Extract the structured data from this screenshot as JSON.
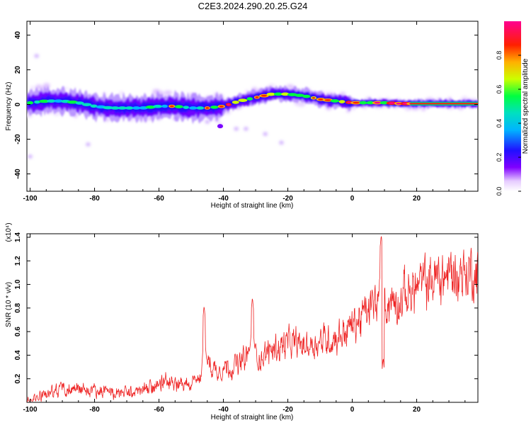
{
  "title": "C2E3.2024.290.20.25.G24",
  "chart_data": [
    {
      "type": "heatmap",
      "xlabel": "Height of straight line (km)",
      "ylabel": "Frequency (Hz)",
      "xlim": [
        -101,
        39
      ],
      "ylim": [
        -50,
        48
      ],
      "xticks": [
        -100,
        -80,
        -60,
        -40,
        -20,
        0,
        20
      ],
      "xtick_labels": [
        "-100",
        "-80",
        "-60",
        "-40",
        "-20",
        "0",
        "20"
      ],
      "yticks": [
        -40,
        -20,
        0,
        20,
        40
      ],
      "ytick_labels": [
        "-40",
        "-20",
        "0",
        "20",
        "40"
      ],
      "colorbar": {
        "label": "Normalized spectral amplitude",
        "range": [
          0,
          1
        ],
        "ticks": [
          0.0,
          0.2,
          0.4,
          0.6,
          0.8
        ],
        "tick_labels": [
          "0.0",
          "0.2",
          "0.4",
          "0.6",
          "0.8"
        ]
      },
      "ridge_frequency": {
        "x": [
          -100,
          -95,
          -90,
          -85,
          -80,
          -75,
          -70,
          -65,
          -60,
          -55,
          -50,
          -45,
          -40,
          -35,
          -30,
          -25,
          -20,
          -15,
          -10,
          -5,
          0,
          5,
          10,
          15,
          20,
          25,
          30,
          38
        ],
        "y": [
          1,
          2,
          2,
          1,
          -1,
          -2,
          -2,
          -2,
          -1,
          -1,
          -2,
          -2,
          -1,
          2,
          4,
          6,
          6,
          5,
          3,
          2,
          1,
          1,
          1,
          0.5,
          0.5,
          0.5,
          0.5,
          0.5
        ]
      },
      "grid": false
    },
    {
      "type": "line",
      "xlabel": "Height of straight line (km)",
      "ylabel": "SNR (10 * v/v)",
      "yscale_label": "(x10⁴)",
      "xlim": [
        -101,
        39
      ],
      "ylim": [
        0,
        1.43
      ],
      "xticks": [
        -100,
        -80,
        -60,
        -40,
        -20,
        0,
        20
      ],
      "xtick_labels": [
        "-100",
        "-80",
        "-60",
        "-40",
        "-20",
        "0",
        "20"
      ],
      "yticks": [
        0.2,
        0.4,
        0.6,
        0.8,
        1.0,
        1.2,
        1.4
      ],
      "ytick_labels": [
        "0.2",
        "0.4",
        "0.6",
        "0.8",
        "1.0",
        "1.2",
        "1.4"
      ],
      "series_color": "#ee2222",
      "trend": {
        "x": [
          -101,
          -95,
          -90,
          -85,
          -80,
          -75,
          -70,
          -65,
          -60,
          -57,
          -55,
          -50,
          -47,
          -45,
          -43,
          -40,
          -35,
          -32,
          -30,
          -28,
          -25,
          -20,
          -15,
          -10,
          -5,
          0,
          3,
          6,
          8,
          9,
          10,
          15,
          20,
          25,
          30,
          35,
          39
        ],
        "y": [
          0.03,
          0.07,
          0.12,
          0.12,
          0.1,
          0.08,
          0.08,
          0.1,
          0.14,
          0.2,
          0.18,
          0.15,
          0.2,
          0.35,
          0.28,
          0.3,
          0.32,
          0.42,
          0.4,
          0.38,
          0.45,
          0.5,
          0.48,
          0.52,
          0.55,
          0.65,
          0.72,
          0.8,
          0.85,
          0.9,
          0.85,
          0.88,
          0.98,
          1.04,
          1.08,
          1.1,
          1.12
        ]
      },
      "spikes": [
        {
          "x": -46,
          "y": 0.82
        },
        {
          "x": -31,
          "y": 0.89
        },
        {
          "x": 9,
          "y": 1.42
        },
        {
          "x": 9.6,
          "y": 0.38
        }
      ],
      "grid": false
    }
  ],
  "colors": {
    "line": "#ee2222",
    "colormap": [
      "#ffffff",
      "#e8d0ff",
      "#7a00ff",
      "#0033ff",
      "#00c8ff",
      "#00ff80",
      "#ffff00",
      "#ff8000",
      "#ff0000",
      "#ff0090"
    ]
  }
}
